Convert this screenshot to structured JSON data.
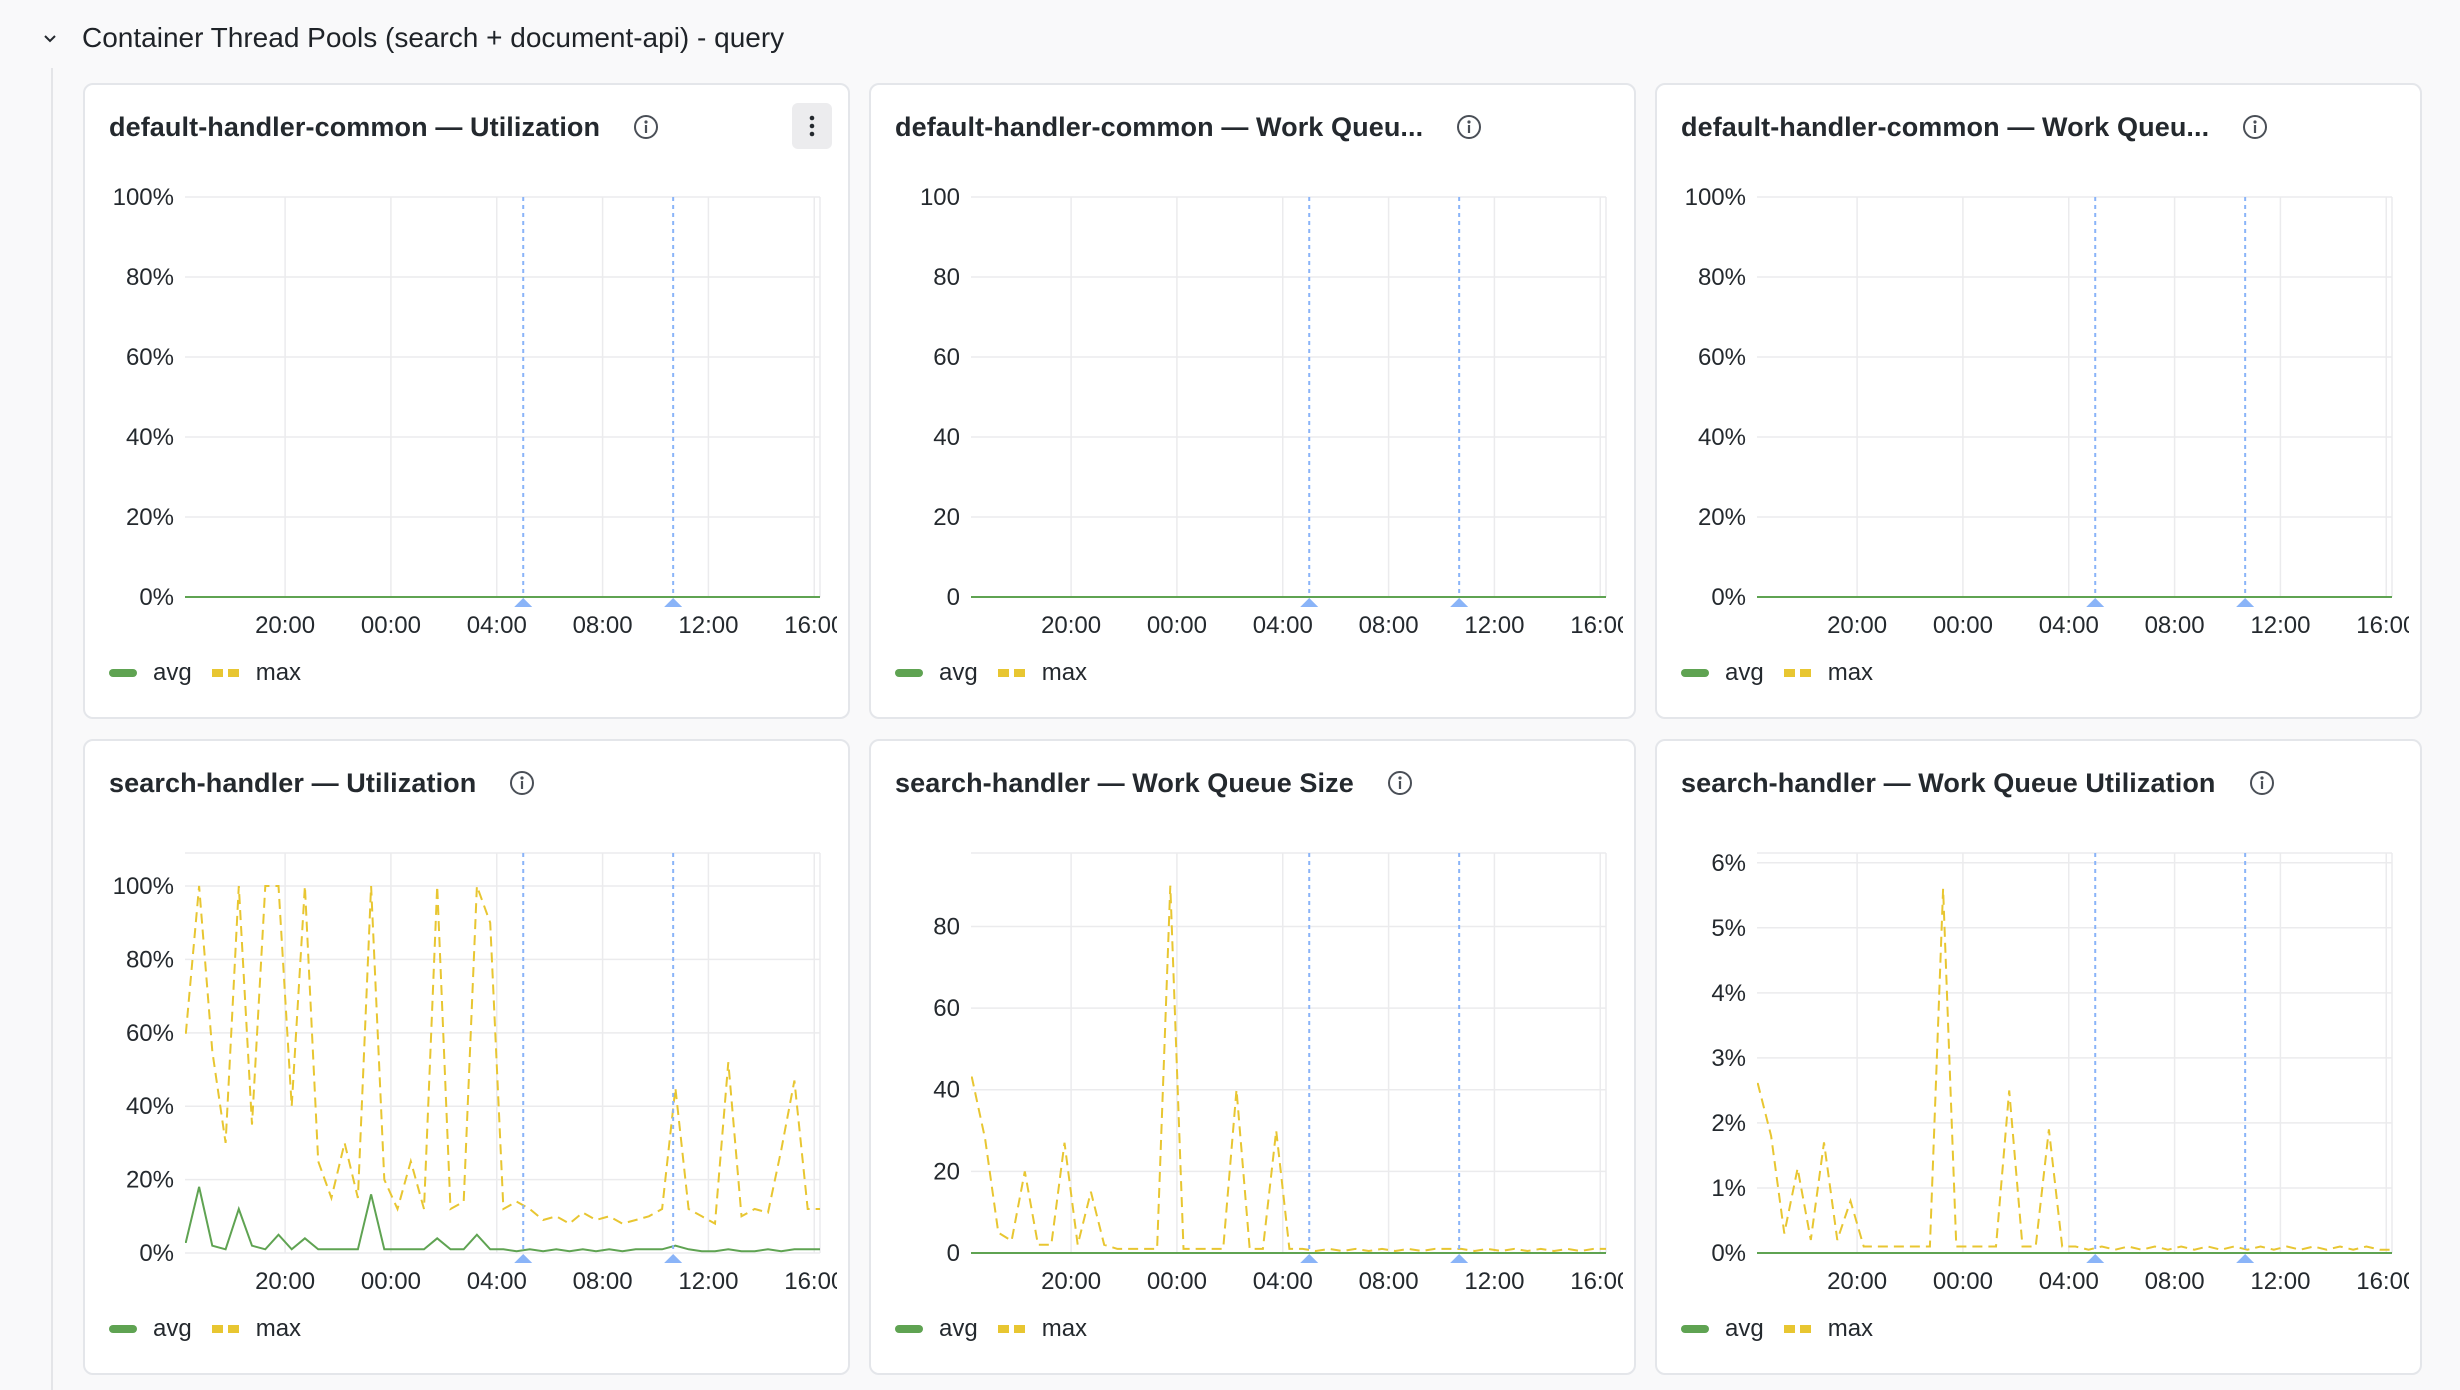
{
  "row": {
    "title": "Container Thread Pools (search + document-api) - query",
    "collapse_icon": "chevron-down-icon"
  },
  "colors": {
    "avg": "#5fa352",
    "max": "#e8c631",
    "annotation": "#8ab4f8",
    "grid": "#ebebed"
  },
  "legend": {
    "avg": "avg",
    "max": "max"
  },
  "x_ticks": [
    "20:00",
    "00:00",
    "04:00",
    "08:00",
    "12:00",
    "16:00"
  ],
  "panels": [
    {
      "title": "default-handler-common — Utilization",
      "has_menu": true
    },
    {
      "title": "default-handler-common — Work Queu..."
    },
    {
      "title": "default-handler-common — Work Queu..."
    },
    {
      "title": "search-handler — Utilization"
    },
    {
      "title": "search-handler — Work Queue Size"
    },
    {
      "title": "search-handler — Work Queue Utilization"
    }
  ],
  "chart_data": [
    {
      "type": "line",
      "title": "default-handler-common — Utilization",
      "x_range": [
        "16:13",
        "16:13"
      ],
      "sample_interval_minutes": 30,
      "x_start": "16:15",
      "ylim": [
        0,
        100
      ],
      "y_ticks": [
        "0%",
        "20%",
        "40%",
        "60%",
        "80%",
        "100%"
      ],
      "y_tick_values": [
        0,
        20,
        40,
        60,
        80,
        100
      ],
      "annotations": [
        "05:00",
        "10:40"
      ],
      "series": [
        {
          "name": "avg",
          "style": "solid",
          "values": [
            0
          ]
        },
        {
          "name": "max",
          "style": "dashed",
          "values": [
            0
          ]
        }
      ]
    },
    {
      "type": "line",
      "title": "default-handler-common — Work Queu...",
      "x_range": [
        "16:13",
        "16:13"
      ],
      "sample_interval_minutes": 30,
      "x_start": "16:15",
      "ylim": [
        0,
        100
      ],
      "y_ticks": [
        "0",
        "20",
        "40",
        "60",
        "80",
        "100"
      ],
      "y_tick_values": [
        0,
        20,
        40,
        60,
        80,
        100
      ],
      "annotations": [
        "05:00",
        "10:40"
      ],
      "series": [
        {
          "name": "avg",
          "style": "solid",
          "values": [
            0
          ]
        },
        {
          "name": "max",
          "style": "dashed",
          "values": [
            0
          ]
        }
      ]
    },
    {
      "type": "line",
      "title": "default-handler-common — Work Queu...",
      "x_range": [
        "16:13",
        "16:13"
      ],
      "sample_interval_minutes": 30,
      "x_start": "16:15",
      "ylim": [
        0,
        100
      ],
      "y_ticks": [
        "0%",
        "20%",
        "40%",
        "60%",
        "80%",
        "100%"
      ],
      "y_tick_values": [
        0,
        20,
        40,
        60,
        80,
        100
      ],
      "annotations": [
        "05:00",
        "10:40"
      ],
      "series": [
        {
          "name": "avg",
          "style": "solid",
          "values": [
            0
          ]
        },
        {
          "name": "max",
          "style": "dashed",
          "values": [
            0
          ]
        }
      ]
    },
    {
      "type": "line",
      "title": "search-handler — Utilization",
      "x_range": [
        "16:13",
        "16:13"
      ],
      "sample_interval_minutes": 30,
      "x_start": "16:15",
      "ylim": [
        0,
        109
      ],
      "y_ticks": [
        "0%",
        "20%",
        "40%",
        "60%",
        "80%",
        "100%"
      ],
      "y_tick_values": [
        0,
        20,
        40,
        60,
        80,
        100
      ],
      "annotations": [
        "05:00",
        "10:40"
      ],
      "series": [
        {
          "name": "avg",
          "style": "solid",
          "values": [
            3,
            18,
            2,
            1,
            12,
            2,
            1,
            5,
            1,
            4,
            1,
            1,
            1,
            1,
            16,
            1,
            1,
            1,
            1,
            4,
            1,
            1,
            5,
            1,
            1,
            0.5,
            1,
            0.5,
            1,
            0.5,
            1,
            0.5,
            1,
            0.5,
            1,
            1,
            1,
            2,
            1,
            0.5,
            0.5,
            1,
            0.5,
            0.5,
            1,
            0.5,
            1,
            1
          ]
        },
        {
          "name": "max",
          "style": "dashed",
          "values": [
            60,
            100,
            55,
            30,
            100,
            35,
            100,
            100,
            40,
            100,
            25,
            15,
            30,
            15,
            100,
            20,
            12,
            25,
            12,
            100,
            12,
            14,
            100,
            90,
            12,
            14,
            12,
            9,
            10,
            8,
            11,
            9,
            10,
            8,
            9,
            10,
            12,
            45,
            12,
            10,
            8,
            52,
            10,
            12,
            11,
            28,
            47,
            12
          ]
        }
      ]
    },
    {
      "type": "line",
      "title": "search-handler — Work Queue Size",
      "x_range": [
        "16:13",
        "16:13"
      ],
      "sample_interval_minutes": 30,
      "x_start": "16:15",
      "ylim": [
        0,
        98
      ],
      "y_ticks": [
        "0",
        "20",
        "40",
        "60",
        "80"
      ],
      "y_tick_values": [
        0,
        20,
        40,
        60,
        80
      ],
      "annotations": [
        "05:00",
        "10:40"
      ],
      "series": [
        {
          "name": "avg",
          "style": "solid",
          "values": [
            0
          ]
        },
        {
          "name": "max",
          "style": "dashed",
          "values": [
            43,
            28,
            5,
            3,
            20,
            2,
            2,
            27,
            2,
            15,
            2,
            1,
            1,
            1,
            1,
            90,
            1,
            1,
            1,
            1,
            40,
            1,
            1,
            30,
            1,
            1,
            0.5,
            1,
            0.5,
            1,
            0.5,
            1,
            0.5,
            1,
            0.5,
            1,
            1,
            1,
            0.5,
            1,
            0.5,
            1,
            0.5,
            1,
            0.5,
            1,
            0.5,
            1
          ]
        }
      ]
    },
    {
      "type": "line",
      "title": "search-handler — Work Queue Utilization",
      "x_range": [
        "16:13",
        "16:13"
      ],
      "sample_interval_minutes": 30,
      "x_start": "16:15",
      "ylim": [
        0,
        6.15
      ],
      "y_ticks": [
        "0%",
        "1%",
        "2%",
        "3%",
        "4%",
        "5%",
        "6%"
      ],
      "y_tick_values": [
        0,
        1,
        2,
        3,
        4,
        5,
        6
      ],
      "annotations": [
        "05:00",
        "10:40"
      ],
      "series": [
        {
          "name": "avg",
          "style": "solid",
          "values": [
            0
          ]
        },
        {
          "name": "max",
          "style": "dashed",
          "values": [
            2.6,
            1.8,
            0.3,
            1.3,
            0.2,
            1.7,
            0.2,
            0.8,
            0.1,
            0.1,
            0.1,
            0.1,
            0.1,
            0.1,
            5.6,
            0.1,
            0.1,
            0.1,
            0.1,
            2.5,
            0.1,
            0.1,
            1.9,
            0.1,
            0.1,
            0.05,
            0.1,
            0.05,
            0.1,
            0.05,
            0.1,
            0.05,
            0.1,
            0.05,
            0.1,
            0.05,
            0.1,
            0.05,
            0.1,
            0.05,
            0.1,
            0.05,
            0.1,
            0.05,
            0.1,
            0.05,
            0.1,
            0.05
          ]
        }
      ]
    }
  ]
}
